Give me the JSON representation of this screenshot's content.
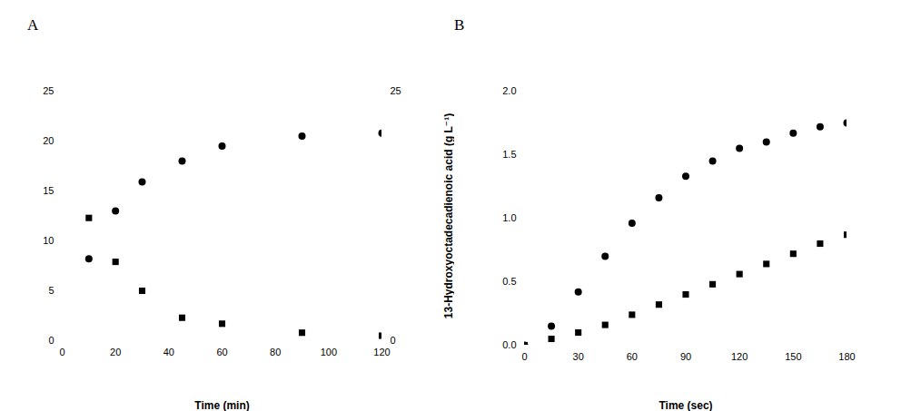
{
  "chart_data": [
    {
      "type": "scatter",
      "title": "A",
      "x_label": "Time (min)",
      "xlim": [
        0,
        120
      ],
      "xticks": [
        0,
        20,
        40,
        60,
        80,
        100,
        120
      ],
      "ylim": [
        0,
        25
      ],
      "yticks": [
        0,
        5,
        10,
        15,
        20,
        25
      ],
      "y2lim": [
        0,
        25
      ],
      "y2ticks": [
        0,
        25
      ],
      "y2_label": "13-Hydroxyoctadecadienoic acid (g L⁻¹)",
      "grid": false,
      "series": [
        {
          "color": "#000000",
          "marker": "circle",
          "axis": "y2",
          "x": [
            10,
            20,
            30,
            45,
            60,
            90,
            120
          ],
          "values": [
            8.2,
            13,
            15.9,
            18,
            19.5,
            20.5,
            20.8
          ]
        },
        {
          "color": "#000000",
          "marker": "square",
          "x": [
            10,
            20,
            30,
            45,
            60,
            90,
            120
          ],
          "values": [
            12.3,
            7.9,
            5,
            2.3,
            1.7,
            0.8,
            0.5
          ]
        }
      ]
    },
    {
      "type": "scatter",
      "title": "B",
      "x_label": "Time (sec)",
      "xlim": [
        0,
        180
      ],
      "xticks": [
        0,
        30,
        60,
        90,
        120,
        150,
        180
      ],
      "ylim": [
        0,
        2
      ],
      "yticks": [
        {
          "value": 0,
          "label": "0.0"
        },
        {
          "value": 0.5,
          "label": "0.5"
        },
        {
          "value": 1,
          "label": "1.0"
        },
        {
          "value": 1.5,
          "label": "1.5"
        },
        {
          "value": 2,
          "label": "2.0"
        }
      ],
      "grid": false,
      "series": [
        {
          "color": "#000000",
          "marker": "circle",
          "x": [
            0,
            15,
            30,
            45,
            60,
            75,
            90,
            105,
            120,
            135,
            150,
            165,
            180
          ],
          "values": [
            0,
            0.15,
            0.42,
            0.7,
            0.96,
            1.16,
            1.33,
            1.45,
            1.55,
            1.6,
            1.67,
            1.72,
            1.75
          ]
        },
        {
          "color": "#000000",
          "marker": "square",
          "x": [
            0,
            15,
            30,
            45,
            60,
            75,
            90,
            105,
            120,
            135,
            150,
            165,
            180
          ],
          "values": [
            0,
            0.05,
            0.1,
            0.16,
            0.24,
            0.32,
            0.4,
            0.48,
            0.56,
            0.64,
            0.72,
            0.8,
            0.87
          ]
        }
      ]
    }
  ]
}
